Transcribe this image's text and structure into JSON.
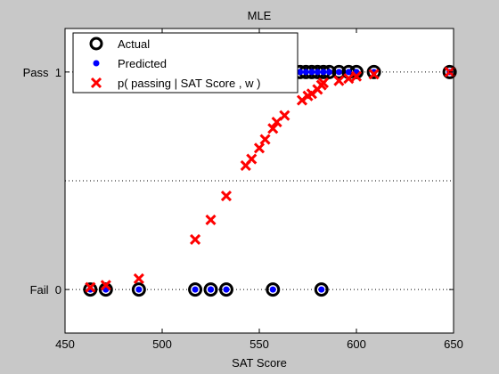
{
  "chart_data": {
    "type": "scatter",
    "title": "MLE",
    "xlabel": "SAT Score",
    "ylabel": "",
    "xlim": [
      450,
      650
    ],
    "ylim": [
      -0.2,
      1.2
    ],
    "x_ticks": [
      450,
      500,
      550,
      600,
      650
    ],
    "y_ticks": [
      {
        "value": 0,
        "label": "Fail  0"
      },
      {
        "value": 1,
        "label": "Pass  1"
      }
    ],
    "gridlines_y": [
      0,
      0.5,
      1
    ],
    "legend_position": "top-left",
    "colors": {
      "actual": "#000000",
      "predicted": "#0000ff",
      "probability": "#ff0000",
      "background": "#c8c8c8",
      "axes": "#ffffff"
    },
    "series": [
      {
        "name": "Actual",
        "marker": "circle",
        "points": [
          [
            463,
            0
          ],
          [
            471,
            0
          ],
          [
            488,
            0
          ],
          [
            517,
            0
          ],
          [
            525,
            0
          ],
          [
            533,
            0
          ],
          [
            557,
            0
          ],
          [
            582,
            0
          ],
          [
            525,
            1
          ],
          [
            543,
            1
          ],
          [
            546,
            1
          ],
          [
            549,
            1
          ],
          [
            552,
            1
          ],
          [
            556,
            1
          ],
          [
            559,
            1
          ],
          [
            562,
            1
          ],
          [
            571,
            1
          ],
          [
            574,
            1
          ],
          [
            577,
            1
          ],
          [
            580,
            1
          ],
          [
            583,
            1
          ],
          [
            586,
            1
          ],
          [
            591,
            1
          ],
          [
            596,
            1
          ],
          [
            600,
            1
          ],
          [
            609,
            1
          ],
          [
            648,
            1
          ]
        ]
      },
      {
        "name": "Predicted",
        "marker": "dot",
        "points": [
          [
            463,
            0
          ],
          [
            471,
            0
          ],
          [
            488,
            0
          ],
          [
            517,
            0
          ],
          [
            525,
            0
          ],
          [
            533,
            0
          ],
          [
            557,
            0
          ],
          [
            582,
            0
          ],
          [
            525,
            0
          ],
          [
            543,
            1
          ],
          [
            546,
            1
          ],
          [
            549,
            1
          ],
          [
            552,
            1
          ],
          [
            556,
            1
          ],
          [
            559,
            1
          ],
          [
            562,
            1
          ],
          [
            571,
            1
          ],
          [
            574,
            1
          ],
          [
            577,
            1
          ],
          [
            580,
            1
          ],
          [
            583,
            1
          ],
          [
            586,
            1
          ],
          [
            591,
            1
          ],
          [
            596,
            1
          ],
          [
            600,
            1
          ],
          [
            609,
            1
          ],
          [
            648,
            1
          ]
        ]
      },
      {
        "name": "p( passing | SAT Score , w )",
        "marker": "x",
        "points": [
          [
            463,
            0.01
          ],
          [
            471,
            0.02
          ],
          [
            488,
            0.05
          ],
          [
            517,
            0.23
          ],
          [
            525,
            0.32
          ],
          [
            533,
            0.43
          ],
          [
            543,
            0.57
          ],
          [
            546,
            0.6
          ],
          [
            550,
            0.65
          ],
          [
            553,
            0.69
          ],
          [
            557,
            0.74
          ],
          [
            559,
            0.77
          ],
          [
            563,
            0.8
          ],
          [
            572,
            0.87
          ],
          [
            575,
            0.89
          ],
          [
            577,
            0.9
          ],
          [
            580,
            0.92
          ],
          [
            582,
            0.94
          ],
          [
            583,
            0.95
          ],
          [
            591,
            0.96
          ],
          [
            596,
            0.97
          ],
          [
            600,
            0.98
          ],
          [
            609,
            0.99
          ],
          [
            648,
            1.0
          ]
        ]
      }
    ]
  }
}
